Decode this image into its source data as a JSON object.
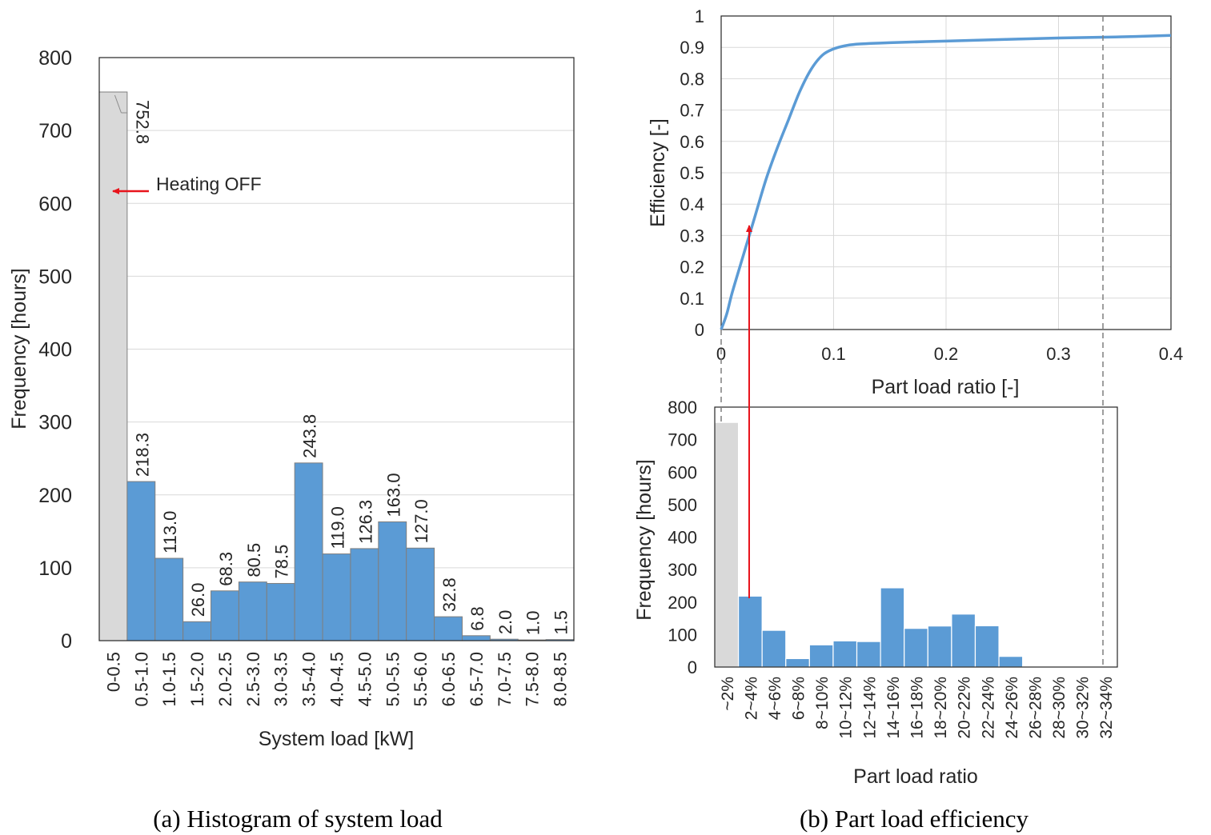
{
  "figure": {
    "caption_a": "(a) Histogram of system load",
    "caption_b": "(b) Part load efficiency"
  },
  "colors": {
    "bar_blue": "#5b9bd5",
    "bar_grey": "#d9d9d9",
    "arrow_red": "#e8141c",
    "curve_blue": "#5b9bd5",
    "grid": "#d9d9d9",
    "axis_dark": "#404040"
  },
  "chart_data": [
    {
      "type": "bar",
      "panel": "a",
      "xlabel": "System load [kW]",
      "ylabel": "Frequency [hours]",
      "ylim": [
        0,
        800
      ],
      "yticks": [
        0,
        100,
        200,
        300,
        400,
        500,
        600,
        700,
        800
      ],
      "grid": true,
      "categories": [
        "0-0.5",
        "0.5-1.0",
        "1.0-1.5",
        "1.5-2.0",
        "2.0-2.5",
        "2.5-3.0",
        "3.0-3.5",
        "3.5-4.0",
        "4.0-4.5",
        "4.5-5.0",
        "5.0-5.5",
        "5.5-6.0",
        "6.0-6.5",
        "6.5-7.0",
        "7.0-7.5",
        "7.5-8.0",
        "8.0-8.5"
      ],
      "values": [
        752.8,
        218.3,
        113.0,
        26.0,
        68.3,
        80.5,
        78.5,
        243.8,
        119.0,
        126.3,
        163.0,
        127.0,
        32.8,
        6.8,
        2.0,
        1.0,
        1.5
      ],
      "data_labels": [
        "752.8",
        "218.3",
        "113.0",
        "26.0",
        "68.3",
        "80.5",
        "78.5",
        "243.8",
        "119.0",
        "126.3",
        "163.0",
        "127.0",
        "32.8",
        "6.8",
        "2.0",
        "1.0",
        "1.5"
      ],
      "highlight_first_bar": true,
      "annotation": "Heating OFF"
    },
    {
      "type": "line",
      "panel": "b-top",
      "xlabel": "Part load ratio [-]",
      "ylabel": "Efficiency [-]",
      "xlim": [
        0,
        0.4
      ],
      "ylim": [
        0,
        1
      ],
      "xticks": [
        0,
        0.1,
        0.2,
        0.3,
        0.4
      ],
      "xtick_labels": [
        "0",
        "0.1",
        "0.2",
        "0.3",
        "0.4"
      ],
      "yticks": [
        0,
        0.1,
        0.2,
        0.3,
        0.4,
        0.5,
        0.6,
        0.7,
        0.8,
        0.9,
        1
      ],
      "ytick_labels": [
        "0",
        "0.1",
        "0.2",
        "0.3",
        "0.4",
        "0.5",
        "0.6",
        "0.7",
        "0.8",
        "0.9",
        "1"
      ],
      "grid": true,
      "x": [
        0,
        0.005,
        0.01,
        0.02,
        0.03,
        0.04,
        0.05,
        0.06,
        0.07,
        0.08,
        0.09,
        0.1,
        0.11,
        0.12,
        0.13,
        0.15,
        0.2,
        0.25,
        0.3,
        0.35,
        0.4
      ],
      "y": [
        0,
        0.05,
        0.12,
        0.24,
        0.36,
        0.48,
        0.58,
        0.67,
        0.76,
        0.83,
        0.875,
        0.895,
        0.905,
        0.91,
        0.912,
        0.915,
        0.92,
        0.925,
        0.93,
        0.933,
        0.938
      ],
      "reference_lines_x": [
        0,
        0.34
      ]
    },
    {
      "type": "bar",
      "panel": "b-bottom",
      "xlabel": "Part load ratio",
      "ylabel": "Frequency  [hours]",
      "ylim": [
        0,
        800
      ],
      "yticks": [
        0,
        100,
        200,
        300,
        400,
        500,
        600,
        700,
        800
      ],
      "grid": false,
      "categories": [
        "~2%",
        "2~4%",
        "4~6%",
        "6~8%",
        "8~10%",
        "10~12%",
        "12~14%",
        "14~16%",
        "16~18%",
        "18~20%",
        "20~22%",
        "22~24%",
        "24~26%",
        "26~28%",
        "28~30%",
        "30~32%",
        "32~34%"
      ],
      "values": [
        752.8,
        218.3,
        113.0,
        26.0,
        68.3,
        80.5,
        78.5,
        243.8,
        119.0,
        126.3,
        163.0,
        127.0,
        32.8,
        2.0,
        1.0,
        1.0,
        1.5
      ],
      "highlight_first_bar": true
    }
  ]
}
